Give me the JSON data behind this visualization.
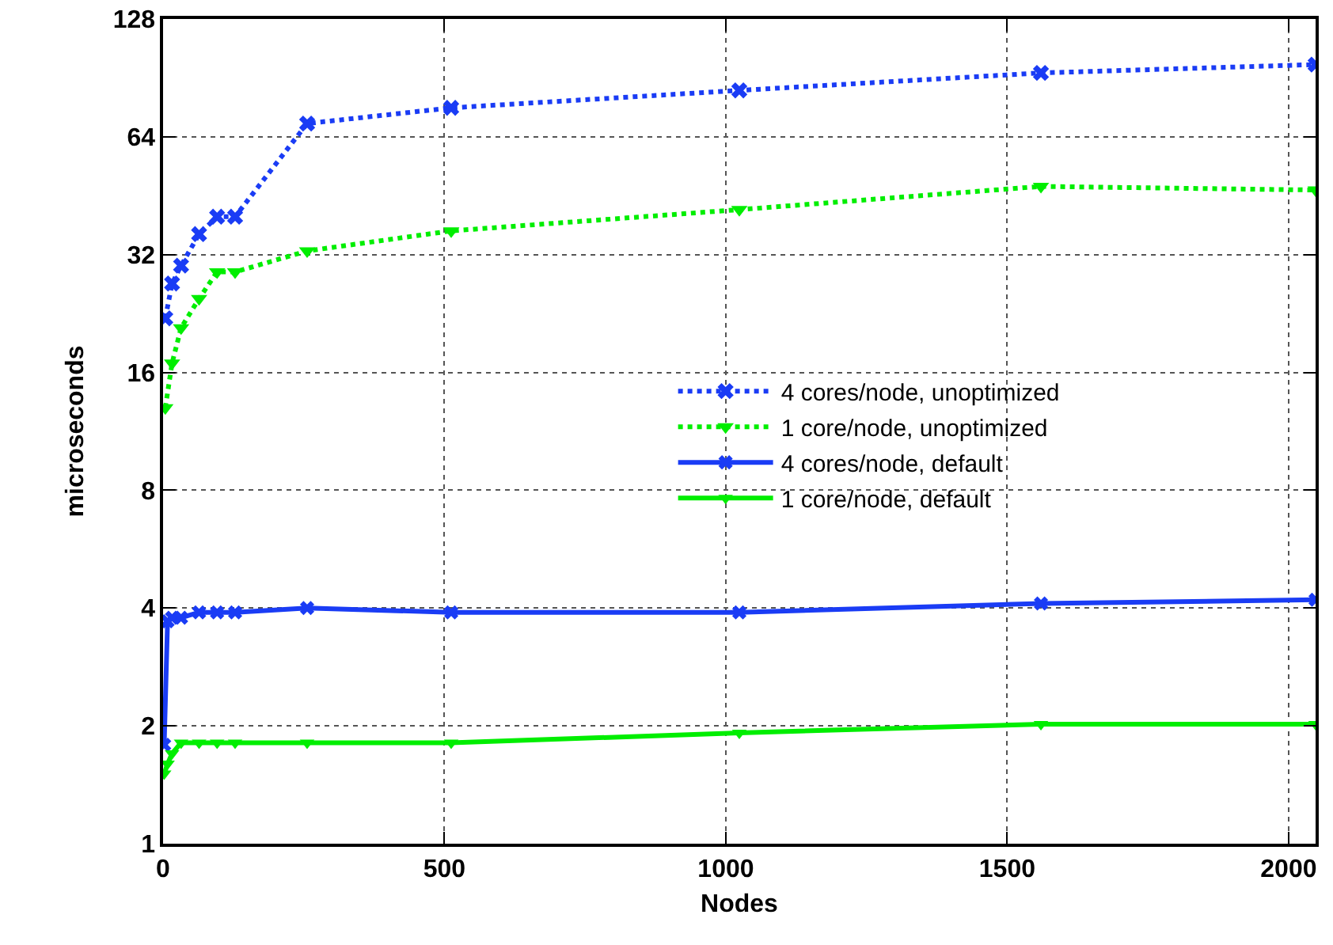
{
  "chart_data": {
    "type": "line",
    "xlabel": "Nodes",
    "ylabel": "microseconds",
    "xlim": [
      0,
      2048
    ],
    "xticks": [
      0,
      500,
      1000,
      1500,
      2000
    ],
    "ylim": [
      1,
      128
    ],
    "yticks": [
      1,
      2,
      4,
      8,
      16,
      32,
      64,
      128
    ],
    "log": "y",
    "grid": true,
    "legend": "center right",
    "series": [
      {
        "name": "4 cores/node, unoptimized",
        "color": "#1a3cf5",
        "marker": "cross",
        "line_style": "dotted",
        "x": [
          4,
          16,
          32,
          64,
          96,
          128,
          256,
          512,
          1024,
          1560,
          2048
        ],
        "values": [
          22.0,
          27.0,
          30.0,
          36.1,
          40.0,
          40.0,
          69.2,
          75.9,
          84.1,
          93.2,
          97.9
        ]
      },
      {
        "name": "1 core/node, unoptimized",
        "color": "#00ee00",
        "marker": "triangle",
        "line_style": "dotted",
        "x": [
          4,
          16,
          32,
          64,
          96,
          128,
          256,
          512,
          1024,
          1560,
          2048
        ],
        "values": [
          13.0,
          16.9,
          20.8,
          24.7,
          28.9,
          28.9,
          32.7,
          36.8,
          41.7,
          47.8,
          46.8
        ]
      },
      {
        "name": "4 cores/node, default",
        "color": "#1a3cf5",
        "marker": "cross",
        "line_style": "solid",
        "x": [
          2,
          8,
          16,
          32,
          64,
          96,
          128,
          256,
          512,
          1024,
          1560,
          2048
        ],
        "values": [
          1.79,
          3.7,
          3.78,
          3.78,
          3.9,
          3.9,
          3.9,
          4.0,
          3.9,
          3.9,
          4.11,
          4.2
        ]
      },
      {
        "name": "1 core/node, default",
        "color": "#00ee00",
        "marker": "triangle",
        "line_style": "solid",
        "x": [
          2,
          8,
          16,
          32,
          64,
          96,
          128,
          256,
          512,
          1024,
          1560,
          2048
        ],
        "values": [
          1.51,
          1.6,
          1.7,
          1.81,
          1.81,
          1.81,
          1.81,
          1.81,
          1.81,
          1.92,
          2.02,
          2.02
        ]
      }
    ]
  }
}
